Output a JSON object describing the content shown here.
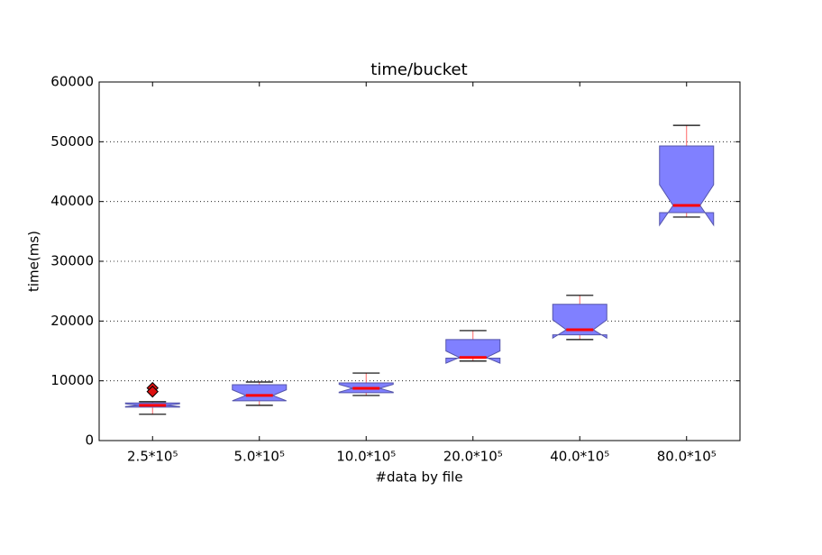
{
  "chart_data": {
    "type": "boxplot",
    "title": "time/bucket",
    "x_label": "#data by file",
    "y_label": "time(ms)",
    "categories": [
      "2.5*10⁵",
      "5.0*10⁵",
      "10.0*10⁵",
      "20.0*10⁵",
      "40.0*10⁵",
      "80.0*10⁵"
    ],
    "boxes": [
      {
        "whislo": 4400,
        "q1": 5600,
        "med": 5900,
        "q3": 6300,
        "whishi": 6500,
        "notch_lo": 5700,
        "notch_hi": 6150,
        "fliers": [
          8800,
          8200
        ]
      },
      {
        "whislo": 5900,
        "q1": 6650,
        "med": 7550,
        "q3": 9350,
        "whishi": 9800,
        "notch_lo": 6650,
        "notch_hi": 8500,
        "fliers": []
      },
      {
        "whislo": 7550,
        "q1": 8000,
        "med": 8750,
        "q3": 9650,
        "whishi": 11300,
        "notch_lo": 8100,
        "notch_hi": 9400,
        "fliers": []
      },
      {
        "whislo": 13300,
        "q1": 13800,
        "med": 13900,
        "q3": 16900,
        "whishi": 18400,
        "notch_lo": 12950,
        "notch_hi": 15000,
        "fliers": []
      },
      {
        "whislo": 16900,
        "q1": 17700,
        "med": 18550,
        "q3": 22800,
        "whishi": 24300,
        "notch_lo": 17150,
        "notch_hi": 20200,
        "fliers": []
      },
      {
        "whislo": 37400,
        "q1": 38150,
        "med": 39350,
        "q3": 49300,
        "whishi": 52750,
        "notch_lo": 36050,
        "notch_hi": 42800,
        "fliers": []
      }
    ],
    "box_color": "#8080ff",
    "median_color": "#ff0000",
    "whisker_color": "#ff6666",
    "flier_color": "#dd1111",
    "ylim": [
      0,
      60000
    ],
    "yticks": [
      0,
      10000,
      20000,
      30000,
      40000,
      50000,
      60000
    ],
    "grid": true
  }
}
